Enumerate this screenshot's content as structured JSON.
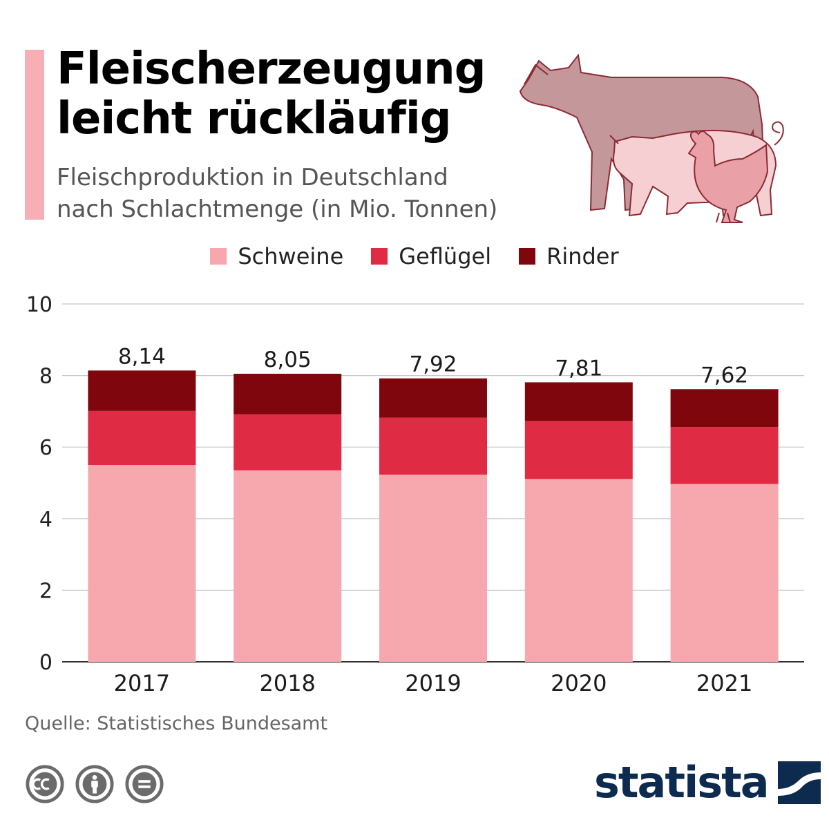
{
  "header": {
    "title_line1": "Fleischerzeugung",
    "title_line2": "leicht rückläufig",
    "subtitle_line1": "Fleischproduktion in Deutschland",
    "subtitle_line2": "nach Schlachtmenge (in Mio. Tonnen)"
  },
  "illustration": {
    "icons": [
      "cow-icon",
      "pig-icon",
      "chicken-icon"
    ]
  },
  "colors": {
    "schweine": "#f7a8ae",
    "gefluegel": "#e02b44",
    "rinder": "#7e060c",
    "accent": "#f7aeb4",
    "brand": "#0d2a4f"
  },
  "legend": [
    {
      "label": "Schweine",
      "color": "#f7a8ae"
    },
    {
      "label": "Geflügel",
      "color": "#e02b44"
    },
    {
      "label": "Rinder",
      "color": "#7e060c"
    }
  ],
  "chart_data": {
    "type": "bar",
    "stacked": true,
    "title": "Fleischerzeugung leicht rückläufig",
    "subtitle": "Fleischproduktion in Deutschland nach Schlachtmenge (in Mio. Tonnen)",
    "categories": [
      "2017",
      "2018",
      "2019",
      "2020",
      "2021"
    ],
    "series": [
      {
        "name": "Schweine",
        "color": "#f7a8ae",
        "values": [
          5.5,
          5.35,
          5.23,
          5.11,
          4.97
        ]
      },
      {
        "name": "Geflügel",
        "color": "#e02b44",
        "values": [
          1.51,
          1.57,
          1.59,
          1.62,
          1.59
        ]
      },
      {
        "name": "Rinder",
        "color": "#7e060c",
        "values": [
          1.13,
          1.13,
          1.1,
          1.08,
          1.06
        ]
      }
    ],
    "totals": [
      8.14,
      8.05,
      7.92,
      7.81,
      7.62
    ],
    "total_labels": [
      "8,14",
      "8,05",
      "7,92",
      "7,81",
      "7,62"
    ],
    "ylim": [
      0,
      10
    ],
    "yticks": [
      "0",
      "2",
      "4",
      "6",
      "8",
      "10"
    ],
    "grid": true,
    "legend_position": "top",
    "xlabel": "",
    "ylabel": ""
  },
  "footer": {
    "source": "Quelle: Statistisches Bundesamt",
    "license_icons": [
      "cc-icon",
      "by-icon",
      "nd-icon"
    ],
    "brand": "statista"
  }
}
